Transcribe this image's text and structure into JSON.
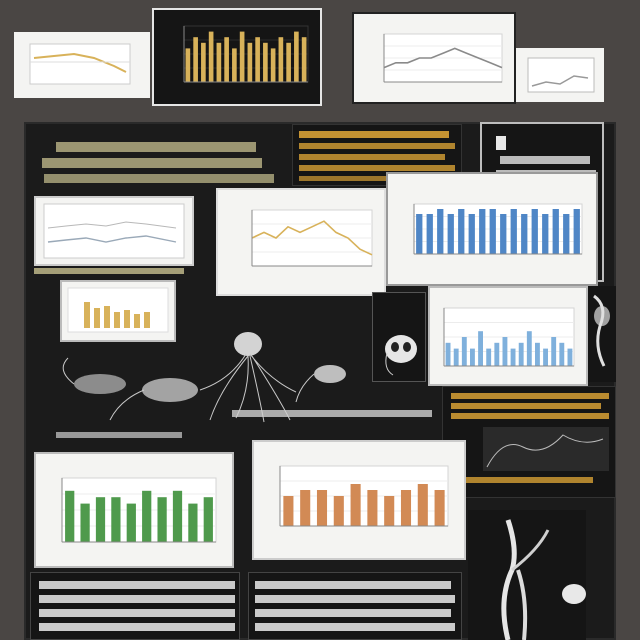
{
  "palette": {
    "background": "#4a4644",
    "board": "#1b1b1b",
    "paper": "#f4f4f2",
    "gold": "#d8b25a",
    "blue": "#4f86c6",
    "orange": "#d28a55",
    "green": "#4f9a4c",
    "light_blue": "#7fb0dc"
  },
  "notes": {
    "main_heading": "",
    "orange_note": "",
    "right_heading": "",
    "caption_left": "",
    "caption_center": "",
    "caption_right": "",
    "bottom_left": "",
    "bottom_center": ""
  },
  "chart_data": [
    {
      "type": "bar",
      "values": [
        6,
        8,
        7,
        9,
        7,
        8,
        6,
        9,
        7,
        8,
        7,
        6,
        8,
        7,
        9,
        8
      ],
      "ylim": [
        0,
        10
      ],
      "title": "",
      "xlabel": "",
      "ylabel": ""
    },
    {
      "type": "line",
      "values": [
        3,
        4,
        4,
        5,
        5,
        6,
        7,
        6,
        5,
        4,
        3
      ],
      "ylim": [
        0,
        10
      ],
      "title": "",
      "xlabel": "",
      "ylabel": ""
    },
    {
      "type": "line",
      "values": [
        5,
        6,
        5,
        7,
        6,
        7,
        8,
        6,
        5,
        3,
        2
      ],
      "ylim": [
        0,
        10
      ],
      "title": "",
      "xlabel": "",
      "ylabel": ""
    },
    {
      "type": "bar",
      "values": [
        8,
        8,
        9,
        8,
        9,
        8,
        9,
        9,
        8,
        9,
        8,
        9,
        8,
        9,
        8,
        9
      ],
      "ylim": [
        0,
        10
      ],
      "title": "",
      "xlabel": "",
      "ylabel": ""
    },
    {
      "type": "bar",
      "values": [
        4,
        3,
        5,
        3,
        6,
        3,
        4,
        5,
        3,
        4,
        6,
        4,
        3,
        5,
        4,
        3
      ],
      "ylim": [
        0,
        10
      ],
      "title": "",
      "xlabel": "",
      "ylabel": ""
    },
    {
      "type": "bar",
      "values": [
        8,
        6,
        7,
        7,
        6,
        8,
        7,
        8,
        6,
        7
      ],
      "ylim": [
        0,
        10
      ],
      "title": "",
      "xlabel": "",
      "ylabel": ""
    },
    {
      "type": "bar",
      "values": [
        5,
        6,
        6,
        5,
        7,
        6,
        5,
        6,
        7,
        6
      ],
      "ylim": [
        0,
        10
      ],
      "title": "",
      "xlabel": "",
      "ylabel": ""
    }
  ]
}
